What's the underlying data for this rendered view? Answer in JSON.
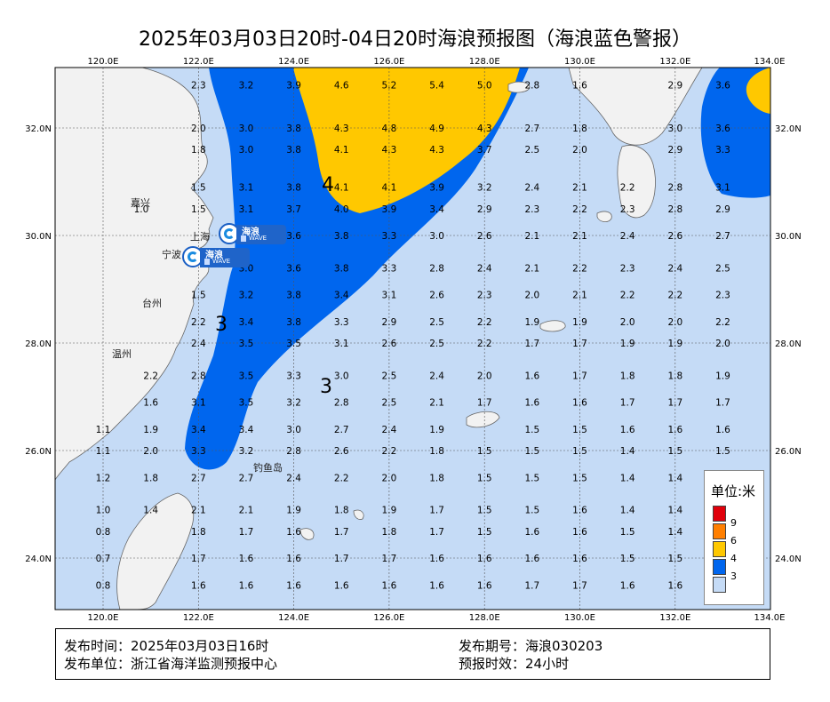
{
  "title": "2025年03月03日20时-04日20时海浪预报图（海浪蓝色警报）",
  "axes": {
    "lon_ticks": [
      "120.0E",
      "122.0E",
      "124.0E",
      "126.0E",
      "128.0E",
      "130.0E",
      "132.0E",
      "134.0E"
    ],
    "lat_ticks": [
      "32.0N",
      "30.0N",
      "28.0N",
      "26.0N",
      "24.0N"
    ]
  },
  "contour_labels": [
    "4",
    "3",
    "3"
  ],
  "place_names": {
    "jiaxing": "嘉兴",
    "shanghai": "上海",
    "ningbo": "宁波",
    "taizhou": "台州",
    "wenzhou": "温州",
    "diaoyu": "钓鱼岛"
  },
  "badges": [
    {
      "line1": "海浪",
      "line2": "WAVE"
    },
    {
      "line1": "海浪",
      "line2": "WAVE"
    }
  ],
  "wave_heights_m": {
    "rows": [
      {
        "lat": 32.8,
        "cells": [
          [
            122.0,
            "2.3"
          ],
          [
            123.0,
            "3.2"
          ],
          [
            124.0,
            "3.9"
          ],
          [
            125.0,
            "4.6"
          ],
          [
            126.0,
            "5.2"
          ],
          [
            127.0,
            "5.4"
          ],
          [
            128.0,
            "5.0"
          ],
          [
            129.0,
            "2.8"
          ],
          [
            130.0,
            "1.6"
          ],
          [
            132.0,
            "2.9"
          ],
          [
            133.0,
            "3.6"
          ]
        ]
      },
      {
        "lat": 32.0,
        "cells": [
          [
            122.0,
            "2.0"
          ],
          [
            123.0,
            "3.0"
          ],
          [
            124.0,
            "3.8"
          ],
          [
            125.0,
            "4.3"
          ],
          [
            126.0,
            "4.8"
          ],
          [
            127.0,
            "4.9"
          ],
          [
            128.0,
            "4.3"
          ],
          [
            129.0,
            "2.7"
          ],
          [
            130.0,
            "1.8"
          ],
          [
            132.0,
            "3.0"
          ],
          [
            133.0,
            "3.6"
          ]
        ]
      },
      {
        "lat": 31.6,
        "cells": [
          [
            122.0,
            "1.8"
          ],
          [
            123.0,
            "3.0"
          ],
          [
            124.0,
            "3.8"
          ],
          [
            125.0,
            "4.1"
          ],
          [
            126.0,
            "4.3"
          ],
          [
            127.0,
            "4.3"
          ],
          [
            128.0,
            "3.7"
          ],
          [
            129.0,
            "2.5"
          ],
          [
            130.0,
            "2.0"
          ],
          [
            132.0,
            "2.9"
          ],
          [
            133.0,
            "3.3"
          ]
        ]
      },
      {
        "lat": 30.9,
        "cells": [
          [
            122.0,
            "1.5"
          ],
          [
            123.0,
            "3.1"
          ],
          [
            124.0,
            "3.8"
          ],
          [
            125.0,
            "4.1"
          ],
          [
            126.0,
            "4.1"
          ],
          [
            127.0,
            "3.9"
          ],
          [
            128.0,
            "3.2"
          ],
          [
            129.0,
            "2.4"
          ],
          [
            130.0,
            "2.1"
          ],
          [
            131.0,
            "2.2"
          ],
          [
            132.0,
            "2.8"
          ],
          [
            133.0,
            "3.1"
          ]
        ]
      },
      {
        "lat": 30.5,
        "cells": [
          [
            120.8,
            "1.0"
          ],
          [
            122.0,
            "1.5"
          ],
          [
            123.0,
            "3.1"
          ],
          [
            124.0,
            "3.7"
          ],
          [
            125.0,
            "4.0"
          ],
          [
            126.0,
            "3.9"
          ],
          [
            127.0,
            "3.4"
          ],
          [
            128.0,
            "2.9"
          ],
          [
            129.0,
            "2.3"
          ],
          [
            130.0,
            "2.2"
          ],
          [
            131.0,
            "2.3"
          ],
          [
            132.0,
            "2.8"
          ],
          [
            133.0,
            "2.9"
          ]
        ]
      },
      {
        "lat": 30.0,
        "cells": [
          [
            124.0,
            "3.6"
          ],
          [
            125.0,
            "3.8"
          ],
          [
            126.0,
            "3.3"
          ],
          [
            127.0,
            "3.0"
          ],
          [
            128.0,
            "2.6"
          ],
          [
            129.0,
            "2.1"
          ],
          [
            130.0,
            "2.1"
          ],
          [
            131.0,
            "2.4"
          ],
          [
            132.0,
            "2.6"
          ],
          [
            133.0,
            "2.7"
          ]
        ]
      },
      {
        "lat": 29.4,
        "cells": [
          [
            123.0,
            "3.0"
          ],
          [
            124.0,
            "3.6"
          ],
          [
            125.0,
            "3.8"
          ],
          [
            126.0,
            "3.3"
          ],
          [
            127.0,
            "2.8"
          ],
          [
            128.0,
            "2.4"
          ],
          [
            129.0,
            "2.1"
          ],
          [
            130.0,
            "2.2"
          ],
          [
            131.0,
            "2.3"
          ],
          [
            132.0,
            "2.4"
          ],
          [
            133.0,
            "2.5"
          ]
        ]
      },
      {
        "lat": 28.9,
        "cells": [
          [
            122.0,
            "1.5"
          ],
          [
            123.0,
            "3.2"
          ],
          [
            124.0,
            "3.8"
          ],
          [
            125.0,
            "3.4"
          ],
          [
            126.0,
            "3.1"
          ],
          [
            127.0,
            "2.6"
          ],
          [
            128.0,
            "2.3"
          ],
          [
            129.0,
            "2.0"
          ],
          [
            130.0,
            "2.1"
          ],
          [
            131.0,
            "2.2"
          ],
          [
            132.0,
            "2.2"
          ],
          [
            133.0,
            "2.3"
          ]
        ]
      },
      {
        "lat": 28.4,
        "cells": [
          [
            122.0,
            "2.2"
          ],
          [
            123.0,
            "3.4"
          ],
          [
            124.0,
            "3.8"
          ],
          [
            125.0,
            "3.3"
          ],
          [
            126.0,
            "2.9"
          ],
          [
            127.0,
            "2.5"
          ],
          [
            128.0,
            "2.2"
          ],
          [
            129.0,
            "1.9"
          ],
          [
            130.0,
            "1.9"
          ],
          [
            131.0,
            "2.0"
          ],
          [
            132.0,
            "2.0"
          ],
          [
            133.0,
            "2.2"
          ]
        ]
      },
      {
        "lat": 28.0,
        "cells": [
          [
            122.0,
            "2.4"
          ],
          [
            123.0,
            "3.5"
          ],
          [
            124.0,
            "3.5"
          ],
          [
            125.0,
            "3.1"
          ],
          [
            126.0,
            "2.6"
          ],
          [
            127.0,
            "2.5"
          ],
          [
            128.0,
            "2.2"
          ],
          [
            129.0,
            "1.7"
          ],
          [
            130.0,
            "1.7"
          ],
          [
            131.0,
            "1.9"
          ],
          [
            132.0,
            "1.9"
          ],
          [
            133.0,
            "2.0"
          ]
        ]
      },
      {
        "lat": 27.4,
        "cells": [
          [
            121.0,
            "2.2"
          ],
          [
            122.0,
            "2.8"
          ],
          [
            123.0,
            "3.5"
          ],
          [
            124.0,
            "3.3"
          ],
          [
            125.0,
            "3.0"
          ],
          [
            126.0,
            "2.5"
          ],
          [
            127.0,
            "2.4"
          ],
          [
            128.0,
            "2.0"
          ],
          [
            129.0,
            "1.6"
          ],
          [
            130.0,
            "1.7"
          ],
          [
            131.0,
            "1.8"
          ],
          [
            132.0,
            "1.8"
          ],
          [
            133.0,
            "1.9"
          ]
        ]
      },
      {
        "lat": 26.9,
        "cells": [
          [
            121.0,
            "1.6"
          ],
          [
            122.0,
            "3.1"
          ],
          [
            123.0,
            "3.5"
          ],
          [
            124.0,
            "3.2"
          ],
          [
            125.0,
            "2.8"
          ],
          [
            126.0,
            "2.5"
          ],
          [
            127.0,
            "2.1"
          ],
          [
            128.0,
            "1.7"
          ],
          [
            129.0,
            "1.6"
          ],
          [
            130.0,
            "1.6"
          ],
          [
            131.0,
            "1.7"
          ],
          [
            132.0,
            "1.7"
          ],
          [
            133.0,
            "1.7"
          ]
        ]
      },
      {
        "lat": 26.4,
        "cells": [
          [
            120.0,
            "1.1"
          ],
          [
            121.0,
            "1.9"
          ],
          [
            122.0,
            "3.4"
          ],
          [
            123.0,
            "3.4"
          ],
          [
            124.0,
            "3.0"
          ],
          [
            125.0,
            "2.7"
          ],
          [
            126.0,
            "2.4"
          ],
          [
            127.0,
            "1.9"
          ],
          [
            129.0,
            "1.5"
          ],
          [
            130.0,
            "1.5"
          ],
          [
            131.0,
            "1.6"
          ],
          [
            132.0,
            "1.6"
          ],
          [
            133.0,
            "1.6"
          ]
        ]
      },
      {
        "lat": 26.0,
        "cells": [
          [
            120.0,
            "1.1"
          ],
          [
            121.0,
            "2.0"
          ],
          [
            122.0,
            "3.3"
          ],
          [
            123.0,
            "3.2"
          ],
          [
            124.0,
            "2.8"
          ],
          [
            125.0,
            "2.6"
          ],
          [
            126.0,
            "2.2"
          ],
          [
            127.0,
            "1.8"
          ],
          [
            128.0,
            "1.5"
          ],
          [
            129.0,
            "1.5"
          ],
          [
            130.0,
            "1.5"
          ],
          [
            131.0,
            "1.4"
          ],
          [
            132.0,
            "1.5"
          ],
          [
            133.0,
            "1.5"
          ]
        ]
      },
      {
        "lat": 25.5,
        "cells": [
          [
            120.0,
            "1.2"
          ],
          [
            121.0,
            "1.8"
          ],
          [
            122.0,
            "2.7"
          ],
          [
            123.0,
            "2.7"
          ],
          [
            124.0,
            "2.4"
          ],
          [
            125.0,
            "2.2"
          ],
          [
            126.0,
            "2.0"
          ],
          [
            127.0,
            "1.8"
          ],
          [
            128.0,
            "1.5"
          ],
          [
            129.0,
            "1.5"
          ],
          [
            130.0,
            "1.5"
          ],
          [
            131.0,
            "1.4"
          ],
          [
            132.0,
            "1.4"
          ]
        ]
      },
      {
        "lat": 24.9,
        "cells": [
          [
            120.0,
            "1.0"
          ],
          [
            121.0,
            "1.4"
          ],
          [
            122.0,
            "2.1"
          ],
          [
            123.0,
            "2.1"
          ],
          [
            124.0,
            "1.9"
          ],
          [
            125.0,
            "1.8"
          ],
          [
            126.0,
            "1.9"
          ],
          [
            127.0,
            "1.7"
          ],
          [
            128.0,
            "1.5"
          ],
          [
            129.0,
            "1.5"
          ],
          [
            130.0,
            "1.6"
          ],
          [
            131.0,
            "1.4"
          ],
          [
            132.0,
            "1.4"
          ]
        ]
      },
      {
        "lat": 24.5,
        "cells": [
          [
            120.0,
            "0.8"
          ],
          [
            122.0,
            "1.8"
          ],
          [
            123.0,
            "1.7"
          ],
          [
            124.0,
            "1.6"
          ],
          [
            125.0,
            "1.7"
          ],
          [
            126.0,
            "1.8"
          ],
          [
            127.0,
            "1.7"
          ],
          [
            128.0,
            "1.5"
          ],
          [
            129.0,
            "1.6"
          ],
          [
            130.0,
            "1.6"
          ],
          [
            131.0,
            "1.5"
          ],
          [
            132.0,
            "1.4"
          ]
        ]
      },
      {
        "lat": 24.0,
        "cells": [
          [
            120.0,
            "0.7"
          ],
          [
            122.0,
            "1.7"
          ],
          [
            123.0,
            "1.6"
          ],
          [
            124.0,
            "1.6"
          ],
          [
            125.0,
            "1.7"
          ],
          [
            126.0,
            "1.7"
          ],
          [
            127.0,
            "1.6"
          ],
          [
            128.0,
            "1.6"
          ],
          [
            129.0,
            "1.6"
          ],
          [
            130.0,
            "1.6"
          ],
          [
            131.0,
            "1.5"
          ],
          [
            132.0,
            "1.5"
          ]
        ]
      },
      {
        "lat": 23.5,
        "cells": [
          [
            120.0,
            "0.8"
          ],
          [
            122.0,
            "1.6"
          ],
          [
            123.0,
            "1.6"
          ],
          [
            124.0,
            "1.6"
          ],
          [
            125.0,
            "1.6"
          ],
          [
            126.0,
            "1.6"
          ],
          [
            127.0,
            "1.6"
          ],
          [
            128.0,
            "1.6"
          ],
          [
            129.0,
            "1.7"
          ],
          [
            130.0,
            "1.7"
          ],
          [
            131.0,
            "1.6"
          ],
          [
            132.0,
            "1.6"
          ]
        ]
      }
    ]
  },
  "legend": {
    "title": "单位:米",
    "items": [
      {
        "label": "9",
        "color": "#e0000b"
      },
      {
        "label": "6",
        "color": "#ff7f00"
      },
      {
        "label": "4",
        "color": "#ffc800"
      },
      {
        "label": "3",
        "color": "#0066ee"
      },
      {
        "label": "",
        "color": "#c5dbf6"
      }
    ]
  },
  "colors": {
    "sea_low": "#c5dbf6",
    "sea_3_4": "#0066ee",
    "sea_4_6": "#ffc800",
    "land": "#f2f2f2"
  },
  "info": {
    "issue_time": "发布时间：2025年03月03日16时",
    "issuer": "发布单位：浙江省海洋监测预报中心",
    "issue_no": "发布期号：海浪030203",
    "validity": "预报时效：24小时"
  }
}
